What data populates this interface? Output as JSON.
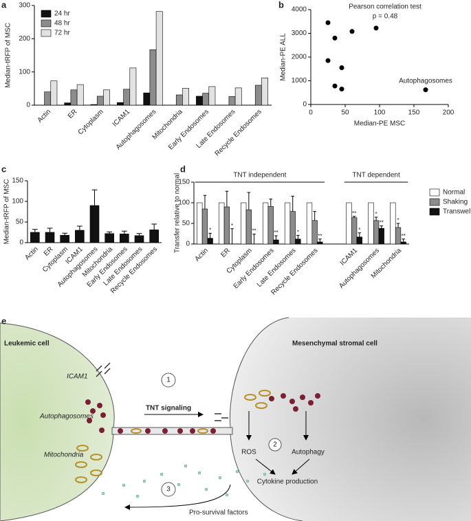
{
  "chart_data": [
    {
      "type": "bar",
      "label": "a",
      "y_label": "Median-tRFP of MSC",
      "categories": [
        "Actin",
        "ER",
        "Cytoplasm",
        "ICAM1",
        "Autophagosomes",
        "Mitochondria",
        "Early Endosomes",
        "Late Endosomes",
        "Recycle Endosomes"
      ],
      "series": [
        {
          "name": "24 hr",
          "color": "#111111",
          "values": [
            0,
            7,
            2,
            8,
            37,
            0,
            27,
            0,
            0
          ]
        },
        {
          "name": "48 hr",
          "color": "#8c8c8c",
          "values": [
            40,
            46,
            27,
            48,
            167,
            31,
            36,
            26,
            60
          ]
        },
        {
          "name": "72 hr",
          "color": "#e2e2e2",
          "values": [
            73,
            62,
            46,
            112,
            282,
            51,
            56,
            52,
            82
          ]
        }
      ],
      "ylim": [
        0,
        300
      ],
      "yticks": [
        0,
        100,
        200,
        300
      ],
      "legend": "upper left"
    },
    {
      "type": "scatter",
      "label": "b",
      "title": "Pearson correlation test",
      "subtitle": "p = 0.48",
      "x_label": "Median-PE MSC",
      "y_label": "Median-PE ALL",
      "color": "#000000",
      "x": [
        25,
        60,
        95,
        35,
        25,
        45,
        35,
        45,
        167
      ],
      "y": [
        3450,
        3080,
        3220,
        2800,
        1850,
        1550,
        780,
        650,
        620
      ],
      "point_labels": [
        null,
        null,
        null,
        null,
        null,
        null,
        null,
        null,
        "Autophagosomes"
      ],
      "xlim": [
        0,
        200
      ],
      "xticks": [
        0,
        50,
        100,
        150,
        200
      ],
      "ylim": [
        0,
        4000
      ],
      "yticks": [
        0,
        1000,
        2000,
        3000,
        4000
      ]
    },
    {
      "type": "bar",
      "label": "c",
      "y_label": "Median-tRFP of MSC",
      "categories": [
        "Actin",
        "ER",
        "Cytoplasm",
        "ICAM1",
        "Autophagosomes",
        "Mitochondria",
        "Early Endosomes",
        "Late Endosomes",
        "Recycle Endosomes"
      ],
      "series": [
        {
          "color": "#111111",
          "values": [
            25,
            25,
            18,
            30,
            90,
            22,
            21,
            17,
            31
          ],
          "errors": [
            7,
            10,
            5,
            10,
            38,
            4,
            7,
            5,
            14
          ]
        }
      ],
      "ylim": [
        0,
        150
      ],
      "yticks": [
        0,
        50,
        100,
        150
      ]
    },
    {
      "type": "bar",
      "label": "d",
      "y_label": "Transfer relative to normal",
      "groups": [
        {
          "label": "TNT independent",
          "categories": [
            "Actin",
            "ER",
            "Cytoplasm",
            "Early Endosomes",
            "Late Endosomes",
            "Recycle Endosomes"
          ]
        },
        {
          "label": "TNT dependent",
          "categories": [
            "ICAM1",
            "Autophagosomes",
            "Mitochondria"
          ]
        }
      ],
      "series": [
        {
          "name": "Normal",
          "color": "#ffffff",
          "values": [
            100,
            100,
            100,
            100,
            100,
            100,
            100,
            100,
            100
          ]
        },
        {
          "name": "Shaking",
          "color": "#8c8c8c",
          "values": [
            85,
            90,
            83,
            91,
            79,
            57,
            64,
            57,
            40
          ],
          "errors": [
            33,
            38,
            42,
            18,
            37,
            22,
            3,
            8,
            10
          ],
          "significance": [
            null,
            null,
            null,
            null,
            null,
            null,
            "**",
            "*",
            "*"
          ]
        },
        {
          "name": "Transwell",
          "color": "#111111",
          "values": [
            14,
            0,
            0,
            10,
            12,
            5,
            17,
            38,
            5
          ],
          "errors": [
            12,
            37,
            24,
            10,
            9,
            7,
            10,
            6,
            7
          ],
          "significance": [
            "*",
            "*",
            "**",
            "**",
            "*",
            "**",
            "*",
            "**",
            "**"
          ]
        }
      ],
      "ylim": [
        0,
        150
      ],
      "yticks": [
        0,
        50,
        100,
        150
      ],
      "legend": "right"
    }
  ],
  "diagram": {
    "label": "e",
    "left_cell": "Leukemic cell",
    "right_cell": "Mesenchymal stromal cell",
    "icam": "ICAM1",
    "autophagosomes": "Autophagosomes",
    "mitochondria": "Mitochondria",
    "step1": "1",
    "step2": "2",
    "step3": "3",
    "tnt": "TNT signaling",
    "ros": "ROS",
    "autophagy": "Autophagy",
    "cytokine": "Cytokine production",
    "factors": "Pro-survival factors"
  }
}
